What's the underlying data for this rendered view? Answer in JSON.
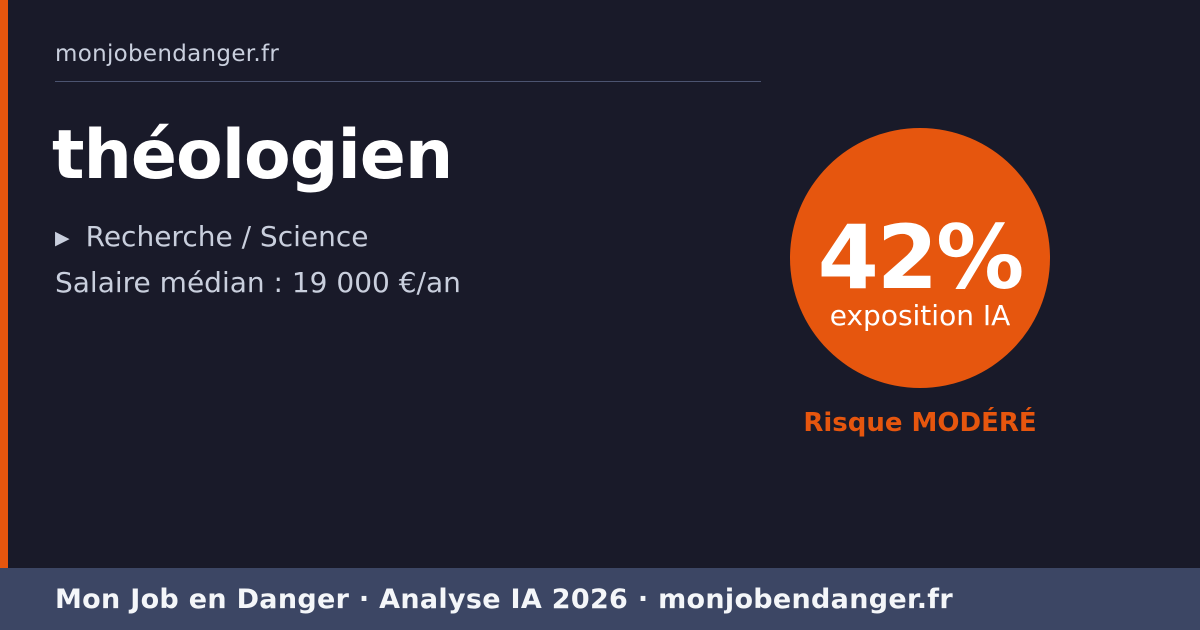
{
  "header": {
    "domain": "monjobendanger.fr"
  },
  "job": {
    "title": "théologien",
    "category": "Recherche / Science",
    "salary": "Salaire médian : 19 000 €/an"
  },
  "exposure": {
    "percent": "42%",
    "caption": "exposition IA",
    "risk_label": "Risque MODÉRÉ"
  },
  "footer": {
    "text": "Mon Job en Danger · Analyse IA 2026 · monjobendanger.fr"
  },
  "icons": {
    "category_bullet": "▶"
  },
  "colors": {
    "background": "#191a29",
    "accent": "#e6560e",
    "footer_background": "#3c4664",
    "muted_text": "#c9cfdd"
  }
}
